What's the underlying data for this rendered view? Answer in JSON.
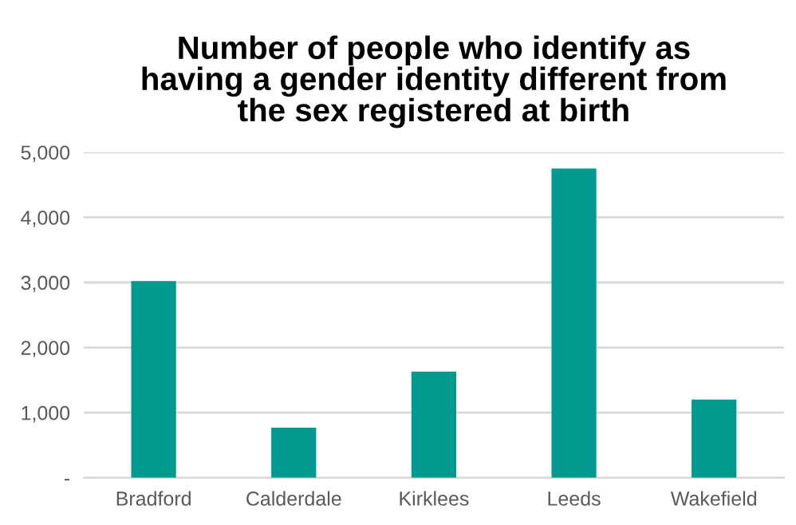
{
  "chart_data": {
    "type": "bar",
    "title": "Number of people who identify as\nhaving a gender identity different from\nthe sex registered at birth",
    "categories": [
      "Bradford",
      "Calderdale",
      "Kirklees",
      "Leeds",
      "Wakefield"
    ],
    "values": [
      3020,
      770,
      1630,
      4750,
      1200
    ],
    "color": "#009a8e",
    "ylim": [
      0,
      5000
    ],
    "yticks": [
      {
        "value": 0,
        "label": "-"
      },
      {
        "value": 1000,
        "label": "1,000"
      },
      {
        "value": 2000,
        "label": "2,000"
      },
      {
        "value": 3000,
        "label": "3,000"
      },
      {
        "value": 4000,
        "label": "4,000"
      },
      {
        "value": 5000,
        "label": "5,000"
      }
    ],
    "grid": "y"
  }
}
